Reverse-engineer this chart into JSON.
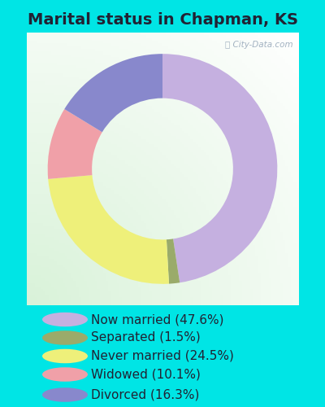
{
  "title": "Marital status in Chapman, KS",
  "slices": [
    47.6,
    1.5,
    24.5,
    10.1,
    16.3
  ],
  "labels": [
    "Now married (47.6%)",
    "Separated (1.5%)",
    "Never married (24.5%)",
    "Widowed (10.1%)",
    "Divorced (16.3%)"
  ],
  "colors": [
    "#c5b0e0",
    "#9aab6a",
    "#eef07a",
    "#f0a0a8",
    "#8888cc"
  ],
  "legend_colors": [
    "#c5b0e0",
    "#9aab6a",
    "#eef07a",
    "#f0a0a8",
    "#8888cc"
  ],
  "bg_color": "#00e5e5",
  "title_color": "#222233",
  "title_fontsize": 14,
  "watermark": "City-Data.com",
  "legend_fontsize": 11
}
